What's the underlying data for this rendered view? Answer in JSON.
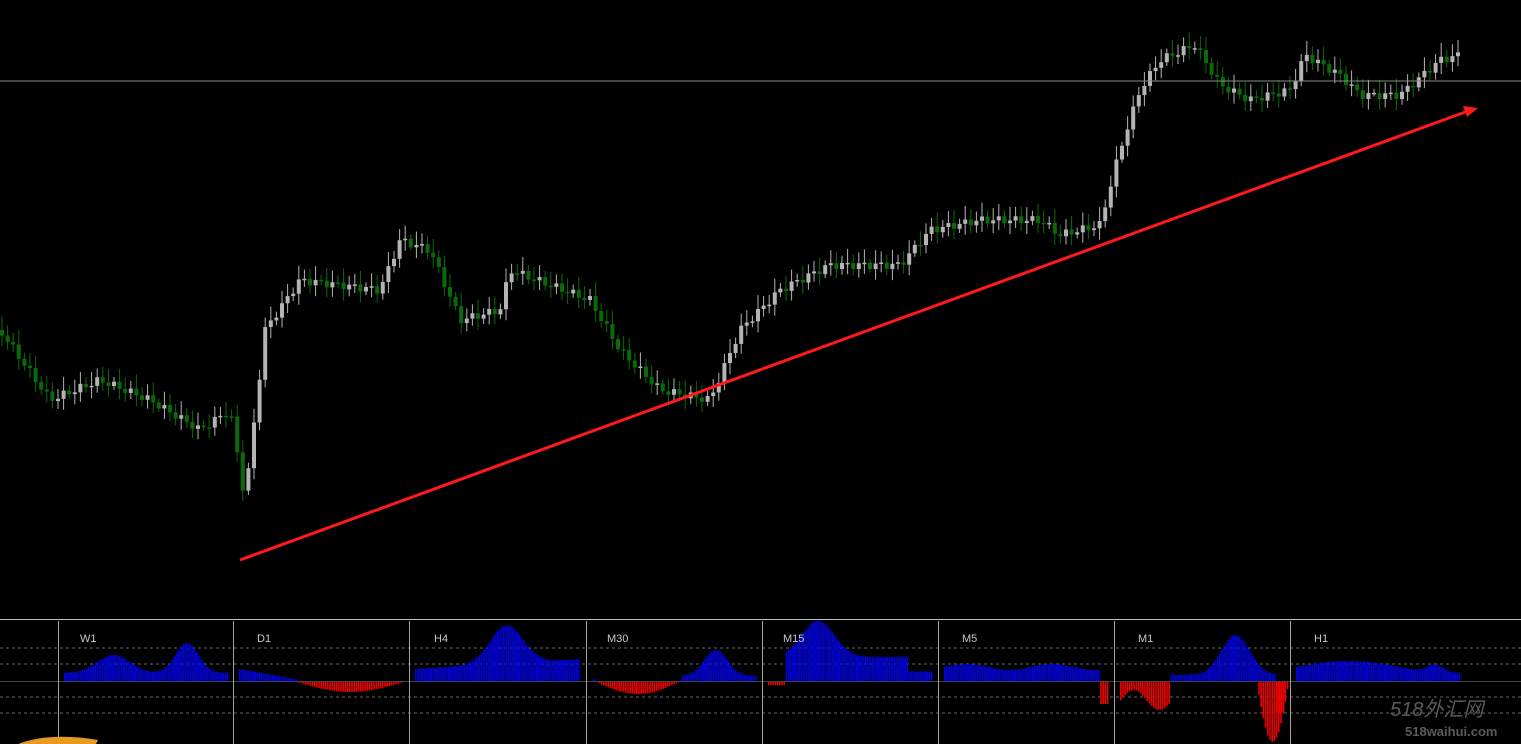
{
  "panels": {
    "labels": [
      "W1",
      "D1",
      "H4",
      "M30",
      "M15",
      "M5",
      "M1",
      "H1"
    ]
  },
  "watermark": {
    "brand": "518外汇网",
    "site": "518waihui.com"
  }
}
